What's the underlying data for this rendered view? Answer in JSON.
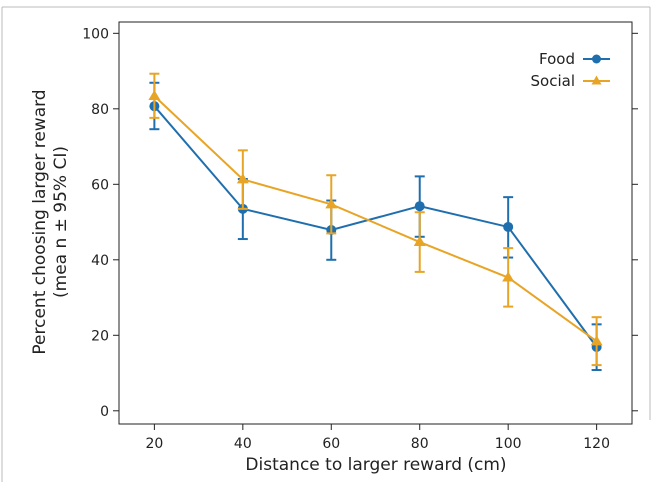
{
  "chart_data": {
    "type": "line",
    "xlabel": "Distance  to larger reward  (cm)",
    "ylabel_lines": [
      "Percent  choosing larger  reward",
      "(mea n ± 95%  CI)"
    ],
    "x": [
      20,
      40,
      60,
      80,
      100,
      120
    ],
    "x_ticks": [
      20,
      40,
      60,
      80,
      100,
      120
    ],
    "xlim": [
      12,
      128
    ],
    "y_ticks": [
      0,
      20,
      40,
      60,
      80,
      100
    ],
    "ylim": [
      -3.5,
      103
    ],
    "grid": false,
    "legend_position": "top-right",
    "series": [
      {
        "name": "Food",
        "color": "#1f6fae",
        "marker": "circle",
        "values": [
          80.7,
          53.5,
          47.9,
          54.2,
          48.7,
          16.9
        ],
        "ci_lower": [
          74.6,
          45.5,
          40.0,
          46.1,
          40.6,
          10.8
        ],
        "ci_upper": [
          86.9,
          61.4,
          55.7,
          62.1,
          56.6,
          22.9
        ]
      },
      {
        "name": "Social",
        "color": "#e8a425",
        "marker": "triangle",
        "values": [
          83.4,
          61.3,
          54.7,
          44.7,
          35.3,
          18.4
        ],
        "ci_lower": [
          77.6,
          53.5,
          47.0,
          36.8,
          27.6,
          12.1
        ],
        "ci_upper": [
          89.3,
          69.0,
          62.4,
          52.6,
          43.1,
          24.8
        ]
      }
    ]
  }
}
